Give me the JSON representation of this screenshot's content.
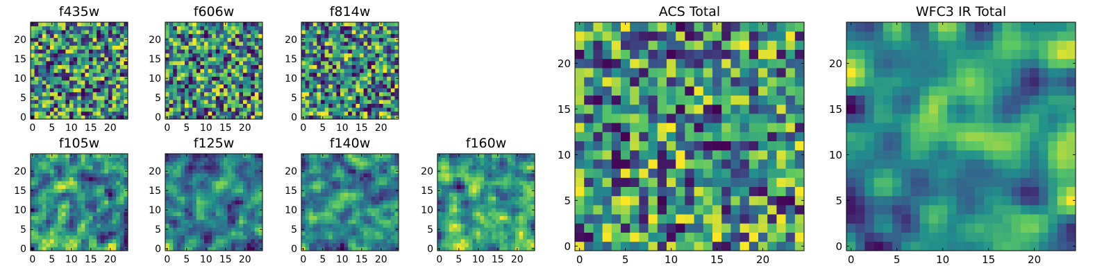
{
  "figure": {
    "colormap": "viridis",
    "colors": [
      "#440154",
      "#3b528b",
      "#21918c",
      "#5ec962",
      "#fde725"
    ]
  },
  "chart_data": [
    {
      "type": "heatmap",
      "title": "f435w",
      "grid_size": 25,
      "seed": 11,
      "smoothness": 0,
      "xlim": [
        0,
        24
      ],
      "ylim": [
        0,
        24
      ],
      "xticks": [
        0,
        5,
        10,
        15,
        20
      ],
      "yticks": [
        0,
        5,
        10,
        15,
        20
      ],
      "colormap": "viridis"
    },
    {
      "type": "heatmap",
      "title": "f606w",
      "grid_size": 25,
      "seed": 23,
      "smoothness": 0,
      "xlim": [
        0,
        24
      ],
      "ylim": [
        0,
        24
      ],
      "xticks": [
        0,
        5,
        10,
        15,
        20
      ],
      "yticks": [
        0,
        5,
        10,
        15,
        20
      ],
      "colormap": "viridis"
    },
    {
      "type": "heatmap",
      "title": "f814w",
      "grid_size": 25,
      "seed": 37,
      "smoothness": 0,
      "xlim": [
        0,
        24
      ],
      "ylim": [
        0,
        24
      ],
      "xticks": [
        0,
        5,
        10,
        15,
        20
      ],
      "yticks": [
        0,
        5,
        10,
        15,
        20
      ],
      "colormap": "viridis"
    },
    {
      "type": "heatmap",
      "title": "f105w",
      "grid_size": 25,
      "seed": 41,
      "smoothness": 1,
      "xlim": [
        0,
        24
      ],
      "ylim": [
        0,
        24
      ],
      "xticks": [
        0,
        5,
        10,
        15,
        20
      ],
      "yticks": [
        0,
        5,
        10,
        15,
        20
      ],
      "colormap": "viridis"
    },
    {
      "type": "heatmap",
      "title": "f125w",
      "grid_size": 25,
      "seed": 53,
      "smoothness": 1,
      "xlim": [
        0,
        24
      ],
      "ylim": [
        0,
        24
      ],
      "xticks": [
        0,
        5,
        10,
        15,
        20
      ],
      "yticks": [
        0,
        5,
        10,
        15,
        20
      ],
      "colormap": "viridis"
    },
    {
      "type": "heatmap",
      "title": "f140w",
      "grid_size": 25,
      "seed": 67,
      "smoothness": 1,
      "xlim": [
        0,
        24
      ],
      "ylim": [
        0,
        24
      ],
      "xticks": [
        0,
        5,
        10,
        15,
        20
      ],
      "yticks": [
        0,
        5,
        10,
        15,
        20
      ],
      "colormap": "viridis"
    },
    {
      "type": "heatmap",
      "title": "f160w",
      "grid_size": 25,
      "seed": 79,
      "smoothness": 1,
      "xlim": [
        0,
        24
      ],
      "ylim": [
        0,
        24
      ],
      "xticks": [
        0,
        5,
        10,
        15,
        20
      ],
      "yticks": [
        0,
        5,
        10,
        15,
        20
      ],
      "colormap": "viridis"
    },
    {
      "type": "heatmap",
      "title": "ACS Total",
      "grid_size": 25,
      "seed": 83,
      "smoothness": 0,
      "xlim": [
        0,
        24
      ],
      "ylim": [
        0,
        24
      ],
      "xticks": [
        0,
        5,
        10,
        15,
        20
      ],
      "yticks": [
        0,
        5,
        10,
        15,
        20
      ],
      "colormap": "viridis"
    },
    {
      "type": "heatmap",
      "title": "WFC3 IR Total",
      "grid_size": 25,
      "seed": 97,
      "smoothness": 2,
      "xlim": [
        0,
        24
      ],
      "ylim": [
        0,
        24
      ],
      "xticks": [
        0,
        5,
        10,
        15,
        20
      ],
      "yticks": [
        0,
        5,
        10,
        15,
        20
      ],
      "colormap": "viridis"
    }
  ]
}
